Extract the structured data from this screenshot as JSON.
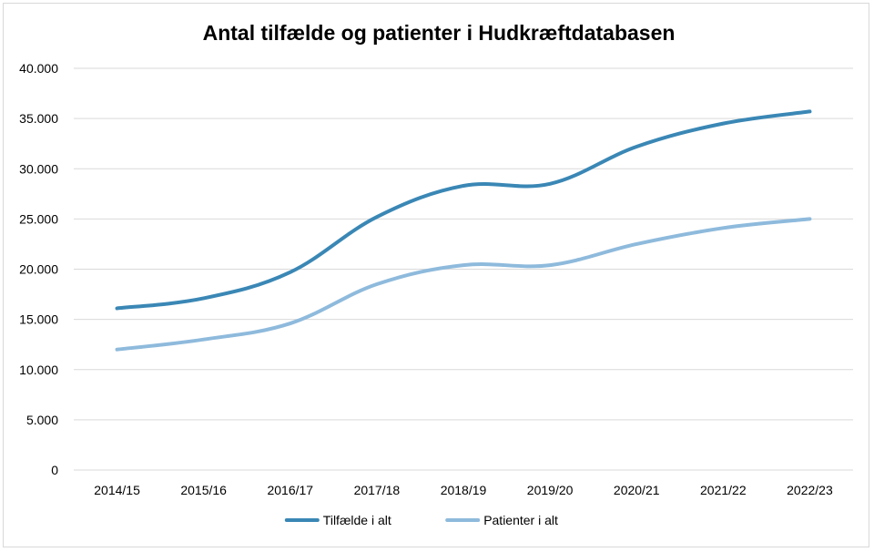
{
  "chart_data": {
    "type": "line",
    "title": "Antal tilfælde og patienter i Hudkræftdatabasen",
    "xlabel": "",
    "ylabel": "",
    "categories": [
      "2014/15",
      "2015/16",
      "2016/17",
      "2017/18",
      "2018/19",
      "2019/20",
      "2020/21",
      "2021/22",
      "2022/23"
    ],
    "ylim": [
      0,
      40000
    ],
    "y_ticks": [
      0,
      5000,
      10000,
      15000,
      20000,
      25000,
      30000,
      35000,
      40000
    ],
    "y_tick_labels": [
      "0",
      "5.000",
      "10.000",
      "15.000",
      "20.000",
      "25.000",
      "30.000",
      "35.000",
      "40.000"
    ],
    "grid": true,
    "legend_position": "bottom",
    "series": [
      {
        "name": "Tilfælde i alt",
        "color": "#3a87b5",
        "values": [
          16100,
          17100,
          19700,
          25200,
          28300,
          28500,
          32200,
          34500,
          35700
        ]
      },
      {
        "name": "Patienter i alt",
        "color": "#8ebadc",
        "values": [
          12000,
          13000,
          14600,
          18500,
          20400,
          20400,
          22500,
          24100,
          25000
        ]
      }
    ]
  }
}
